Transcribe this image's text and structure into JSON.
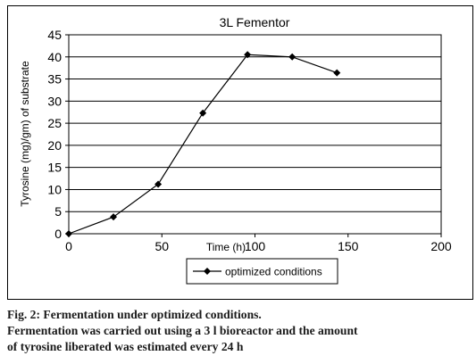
{
  "chart_data": {
    "type": "line",
    "title": "3L Fementor",
    "xlabel": "Time (h)",
    "ylabel": "Tyrosine (mg)/gm) of substrate",
    "xlim": [
      0,
      200
    ],
    "ylim": [
      0,
      45
    ],
    "xticks": [
      0,
      50,
      100,
      150,
      200
    ],
    "yticks": [
      0,
      5,
      10,
      15,
      20,
      25,
      30,
      35,
      40,
      45
    ],
    "grid": "horizontal",
    "legend_position": "bottom",
    "series": [
      {
        "name": "optimized conditions",
        "marker": "diamond",
        "color": "#000000",
        "x": [
          0,
          24,
          48,
          72,
          96,
          120,
          144
        ],
        "y": [
          0,
          3.8,
          11.2,
          27.3,
          40.5,
          40.0,
          36.4
        ]
      }
    ]
  },
  "caption": {
    "line1": "Fig. 2: Fermentation under optimized conditions.",
    "line2": "Fermentation was carried out using a 3 l bioreactor and the amount",
    "line3": "of tyrosine liberated was estimated every 24 h"
  }
}
